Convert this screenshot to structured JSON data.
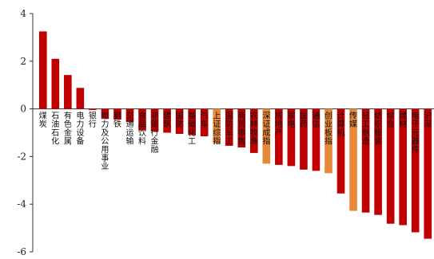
{
  "chart_data": {
    "type": "bar",
    "title": "",
    "xlabel": "",
    "ylabel": "",
    "ylim": [
      -6,
      4
    ],
    "yticks": [
      4,
      2,
      0,
      -2,
      -4,
      -6
    ],
    "grid": false,
    "colors": {
      "sector": "#c00000",
      "index": "#e8883a"
    },
    "categories": [
      "煤炭",
      "石油石化",
      "有色金属",
      "电力设备",
      "银行",
      "电力及公用事业",
      "钢铁",
      "交通运输",
      "食品饮料",
      "非银行金融",
      "建筑",
      "国防军工",
      "基础化工",
      "汽车",
      "上证综指",
      "国防军工",
      "商贸零售",
      "农林牧渔",
      "深证成指",
      "房地产",
      "家电",
      "医药",
      "通信",
      "创业板指",
      "计算机",
      "传媒",
      "轻工制造",
      "纺织服装",
      "综合",
      "建材",
      "电子元器件",
      "沪深300"
    ],
    "values": [
      3.25,
      2.1,
      1.42,
      0.88,
      -0.05,
      -0.42,
      -0.45,
      -0.55,
      -0.9,
      -0.95,
      -1.0,
      -1.05,
      -1.1,
      -1.15,
      -1.45,
      -1.55,
      -1.62,
      -1.85,
      -2.3,
      -2.35,
      -2.4,
      -2.55,
      -2.6,
      -2.7,
      -3.55,
      -4.28,
      -4.35,
      -4.45,
      -4.82,
      -4.88,
      -5.18,
      -5.45
    ],
    "kinds": [
      "s",
      "s",
      "s",
      "s",
      "s",
      "s",
      "s",
      "s",
      "s",
      "s",
      "s",
      "s",
      "s",
      "s",
      "i",
      "s",
      "s",
      "s",
      "i",
      "s",
      "s",
      "s",
      "s",
      "i",
      "s",
      "i",
      "s",
      "s",
      "s",
      "s",
      "s",
      "s"
    ],
    "visible_labels": [
      "煤炭",
      "石油石化",
      "有色金属",
      "电力设备",
      "银行",
      "电力及公用事业",
      "钢铁",
      "交通运输",
      "食品饮料",
      "非银行金融",
      "建筑",
      "国防",
      "基础化工",
      "汽车",
      "上证综指",
      "国防军工",
      "商贸零售",
      "农林牧渔",
      "深证成指",
      "房地产",
      "家电",
      "医药",
      "通信",
      "创业板指",
      "计算机",
      "传媒",
      "轻工制造",
      "纺织服装",
      "综合",
      "建材",
      "电子元器件",
      "沪深"
    ]
  }
}
